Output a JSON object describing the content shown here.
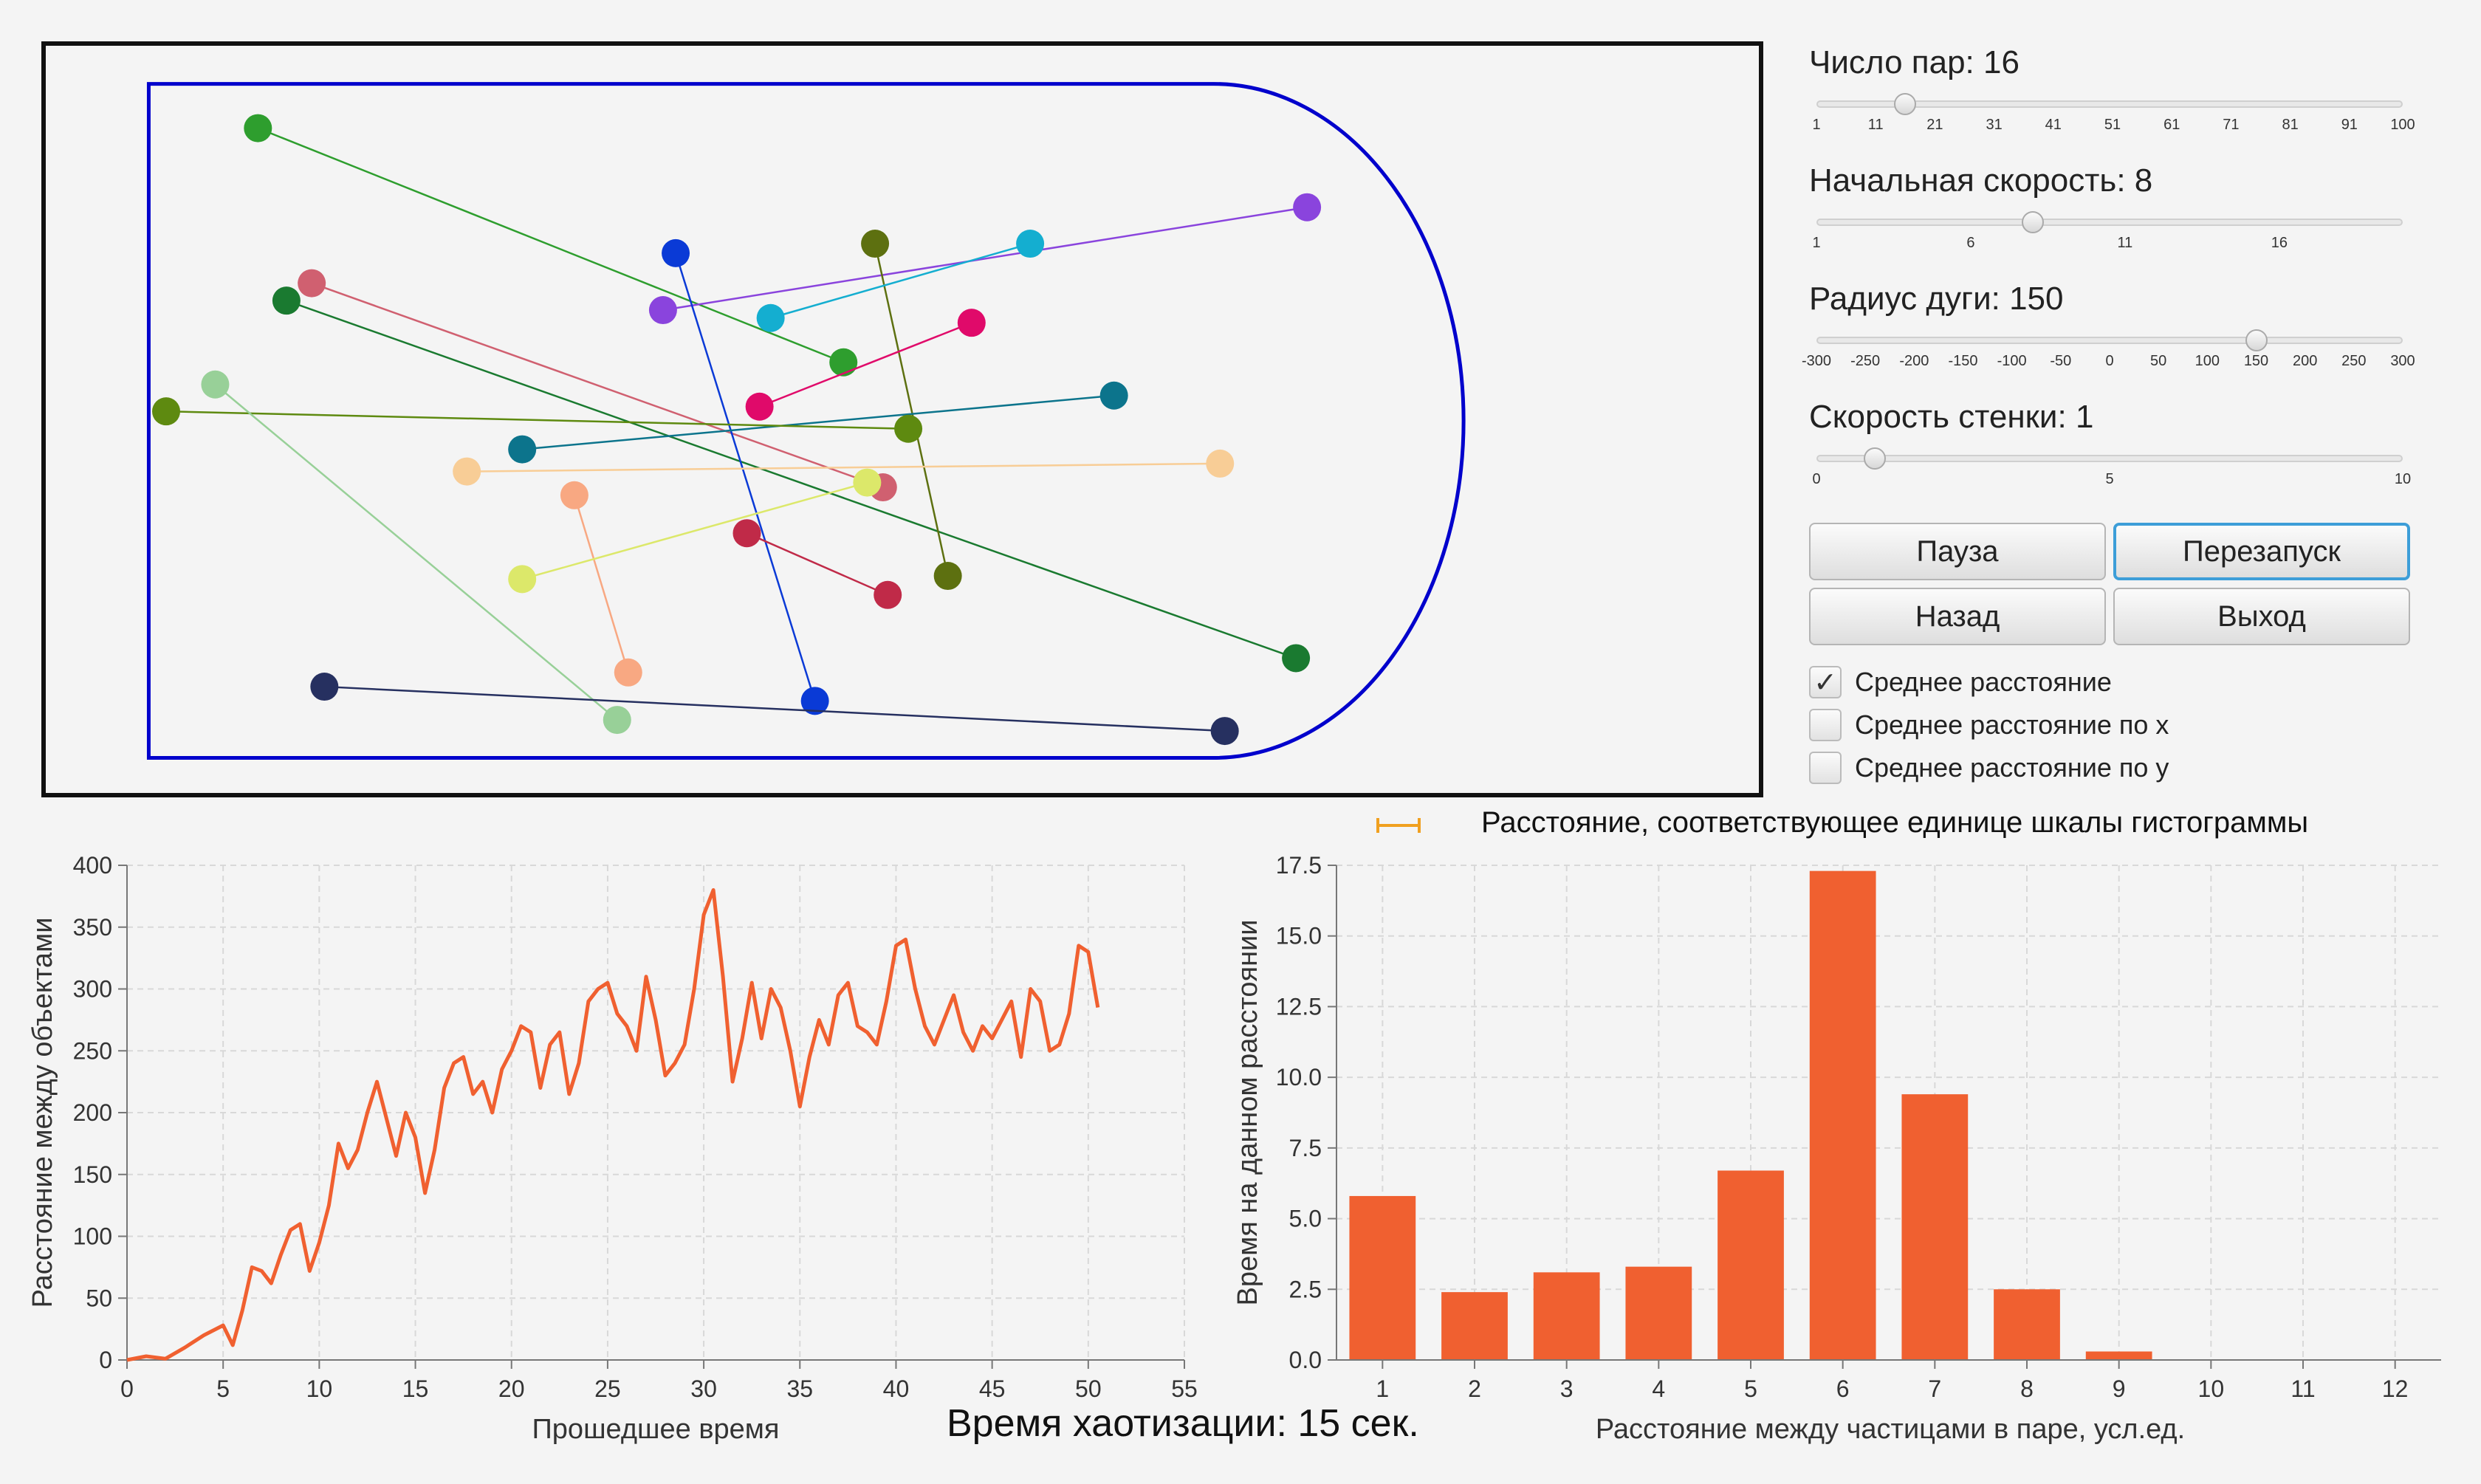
{
  "controls": {
    "pairs": {
      "label": "Число пар: 16",
      "value": 16,
      "min": 1,
      "max": 100,
      "ticks": [
        "1",
        "11",
        "21",
        "31",
        "41",
        "51",
        "61",
        "71",
        "81",
        "91",
        "100"
      ]
    },
    "speed": {
      "label": "Начальная скорость: 8",
      "value": 8,
      "min": 1,
      "max": 20,
      "ticks": [
        "1",
        "6",
        "11",
        "16"
      ]
    },
    "radius": {
      "label": "Радиус дуги: 150",
      "value": 150,
      "min": -300,
      "max": 300,
      "ticks": [
        "-300",
        "-250",
        "-200",
        "-150",
        "-100",
        "-50",
        "0",
        "50",
        "100",
        "150",
        "200",
        "250",
        "300"
      ]
    },
    "wall": {
      "label": "Скорость стенки: 1",
      "value": 1,
      "min": 0,
      "max": 10,
      "ticks": [
        "0",
        "5",
        "10"
      ]
    }
  },
  "buttons": {
    "pause": "Пауза",
    "restart": "Перезапуск",
    "back": "Назад",
    "exit": "Выход"
  },
  "checkboxes": [
    {
      "label": "Среднее расстояние",
      "checked": true
    },
    {
      "label": "Среднее расстояние по x",
      "checked": false
    },
    {
      "label": "Среднее расстояние по y",
      "checked": false
    }
  ],
  "check_glyph": "✓",
  "scale_legend": "Расстояние, соответствующее единице шкалы гистограммы",
  "chaos_time": "Время хаотизации: 15 сек.",
  "colors": {
    "accent": "#f06030",
    "wall": "#0000cc",
    "legend_bar": "#f0a020",
    "focus": "#3d9ed8"
  },
  "pairs": [
    {
      "color": "#2e9e2e",
      "a": [
        163,
        81
      ],
      "b": [
        533,
        229
      ]
    },
    {
      "color": "#8a44dd",
      "a": [
        419,
        196
      ],
      "b": [
        826,
        131
      ]
    },
    {
      "color": "#1a7a30",
      "a": [
        181,
        190
      ],
      "b": [
        819,
        416
      ]
    },
    {
      "color": "#d06070",
      "a": [
        197,
        179
      ],
      "b": [
        558,
        308
      ]
    },
    {
      "color": "#0a3ad6",
      "a": [
        427,
        160
      ],
      "b": [
        515,
        443
      ]
    },
    {
      "color": "#5d7010",
      "a": [
        553,
        154
      ],
      "b": [
        599,
        364
      ]
    },
    {
      "color": "#14aed0",
      "a": [
        487,
        201
      ],
      "b": [
        651,
        154
      ]
    },
    {
      "color": "#e00a6a",
      "a": [
        480,
        257
      ],
      "b": [
        614,
        204
      ]
    },
    {
      "color": "#0c748c",
      "a": [
        330,
        284
      ],
      "b": [
        704,
        250
      ]
    },
    {
      "color": "#5e8a10",
      "a": [
        105,
        260
      ],
      "b": [
        574,
        271
      ]
    },
    {
      "color": "#98d098",
      "a": [
        136,
        243
      ],
      "b": [
        390,
        455
      ]
    },
    {
      "color": "#f8cd96",
      "a": [
        295,
        298
      ],
      "b": [
        771,
        293
      ]
    },
    {
      "color": "#f8a882",
      "a": [
        363,
        313
      ],
      "b": [
        397,
        425
      ]
    },
    {
      "color": "#dce86a",
      "a": [
        330,
        366
      ],
      "b": [
        548,
        305
      ]
    },
    {
      "color": "#c02a48",
      "a": [
        472,
        337
      ],
      "b": [
        561,
        376
      ]
    },
    {
      "color": "#263060",
      "a": [
        205,
        434
      ],
      "b": [
        774,
        462
      ]
    }
  ],
  "line_chart": {
    "type": "line",
    "xlabel": "Прошедшее время",
    "ylabel": "Расстояние между объектами",
    "xlim": [
      0,
      55
    ],
    "ylim": [
      0,
      400
    ],
    "xticks": [
      "0",
      "5",
      "10",
      "15",
      "20",
      "25",
      "30",
      "35",
      "40",
      "45",
      "50",
      "55"
    ],
    "yticks": [
      "0",
      "50",
      "100",
      "150",
      "200",
      "250",
      "300",
      "350",
      "400"
    ],
    "x": [
      0,
      1,
      2,
      3,
      4,
      5,
      5.5,
      6,
      6.5,
      7,
      7.5,
      8,
      8.5,
      9,
      9.5,
      10,
      10.5,
      11,
      11.5,
      12,
      12.5,
      13,
      13.5,
      14,
      14.5,
      15,
      15.5,
      16,
      16.5,
      17,
      17.5,
      18,
      18.5,
      19,
      19.5,
      20,
      20.5,
      21,
      21.5,
      22,
      22.5,
      23,
      23.5,
      24,
      24.5,
      25,
      25.5,
      26,
      26.5,
      27,
      27.5,
      28,
      28.5,
      29,
      29.5,
      30,
      30.5,
      31,
      31.5,
      32,
      32.5,
      33,
      33.5,
      34,
      34.5,
      35,
      35.5,
      36,
      36.5,
      37,
      37.5,
      38,
      38.5,
      39,
      39.5,
      40,
      40.5,
      41,
      41.5,
      42,
      42.5,
      43,
      43.5,
      44,
      44.5,
      45,
      45.5,
      46,
      46.5,
      47,
      47.5,
      48,
      48.5,
      49,
      49.5,
      50,
      50.5,
      51
    ],
    "series": [
      {
        "values": [
          0,
          3,
          1,
          10,
          20,
          28,
          12,
          40,
          75,
          72,
          62,
          85,
          105,
          110,
          72,
          95,
          125,
          175,
          155,
          170,
          200,
          225,
          195,
          165,
          200,
          180,
          135,
          170,
          220,
          240,
          245,
          215,
          225,
          200,
          235,
          250,
          270,
          265,
          220,
          255,
          265,
          215,
          240,
          290,
          300,
          305,
          280,
          270,
          250,
          310,
          275,
          230,
          240,
          255,
          300,
          360,
          380,
          310,
          225,
          260,
          305,
          260,
          300,
          285,
          250,
          205,
          245,
          275,
          255,
          295,
          305,
          270,
          265,
          255,
          290,
          335,
          340,
          300,
          270,
          255,
          275,
          295,
          265,
          250,
          270,
          260,
          275,
          290,
          245,
          300,
          290,
          250,
          255,
          280,
          335,
          330,
          285
        ]
      }
    ]
  },
  "bar_chart": {
    "type": "bar",
    "xlabel": "Расстояние между частицами в паре, усл.ед.",
    "ylabel": "Время на данном расстоянии",
    "ylim": [
      0,
      17.5
    ],
    "yticks": [
      "0.0",
      "2.5",
      "5.0",
      "7.5",
      "10.0",
      "12.5",
      "15.0",
      "17.5"
    ],
    "categories": [
      "1",
      "2",
      "3",
      "4",
      "5",
      "6",
      "7",
      "8",
      "9",
      "10",
      "11",
      "12"
    ],
    "values": [
      5.8,
      2.4,
      3.1,
      3.3,
      6.7,
      17.3,
      9.4,
      2.5,
      0.3,
      0,
      0,
      0
    ]
  }
}
